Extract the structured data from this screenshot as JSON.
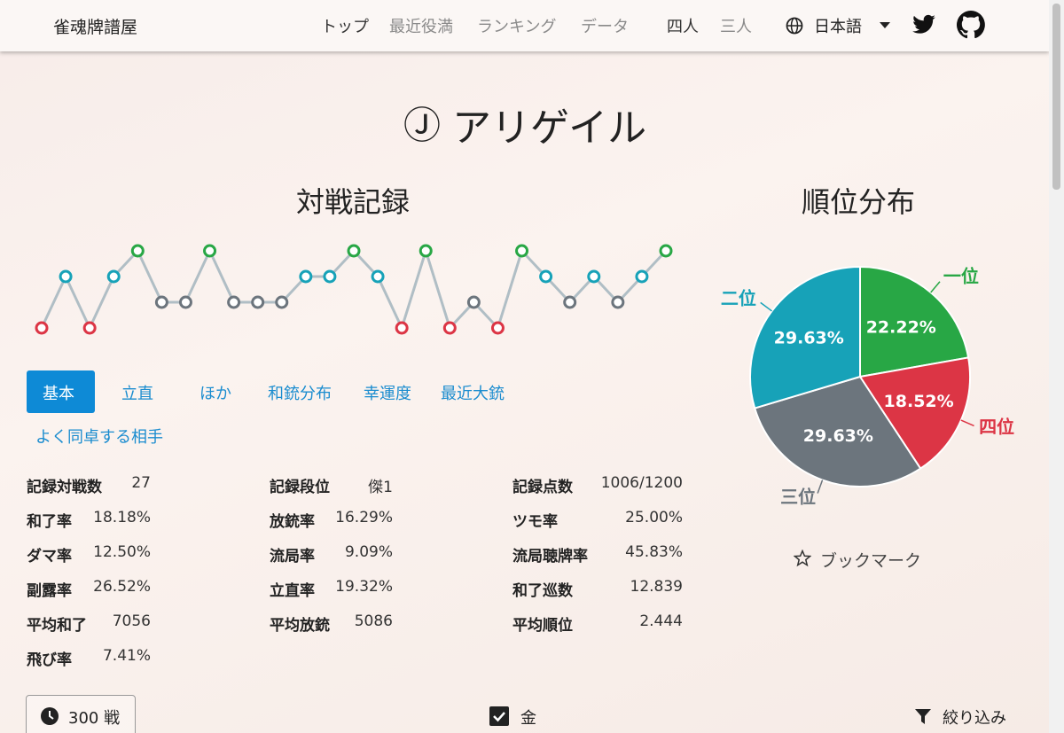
{
  "navbar": {
    "brand": "雀魂牌譜屋",
    "links": [
      "トップ",
      "最近役満",
      "ランキング",
      "データ"
    ],
    "modes": [
      "四人",
      "三人"
    ],
    "language": "日本語"
  },
  "player": {
    "badge": "Ⓙ",
    "name": "アリゲイル"
  },
  "rank_chart": {
    "chart_data": {
      "type": "line",
      "title": "対戦記録",
      "x": [
        1,
        2,
        3,
        4,
        5,
        6,
        7,
        8,
        9,
        10,
        11,
        12,
        13,
        14,
        15,
        16,
        17,
        18,
        19,
        20,
        21,
        22,
        23,
        24,
        25,
        26,
        27
      ],
      "values": [
        4,
        2,
        4,
        2,
        1,
        3,
        3,
        1,
        3,
        3,
        3,
        2,
        2,
        1,
        2,
        4,
        1,
        4,
        3,
        4,
        1,
        2,
        3,
        2,
        3,
        2,
        1
      ],
      "xlim": [
        1,
        27
      ],
      "ylim": [
        4,
        1
      ],
      "line_color": "#b0bec5",
      "rank_colors": [
        "#28a745",
        "#17a2b8",
        "#6c757d",
        "#dc3545"
      ]
    }
  },
  "rank_pie": {
    "chart_data": {
      "type": "pie",
      "title": "順位分布",
      "categories": [
        "一位",
        "四位",
        "三位",
        "二位"
      ],
      "values": [
        22.22,
        18.52,
        29.63,
        29.63
      ],
      "value_labels": [
        "22.22%",
        "18.52%",
        "29.63%",
        "29.63%"
      ],
      "colors": [
        "#28a745",
        "#dc3545",
        "#6c757d",
        "#17a2b8"
      ]
    }
  },
  "tabs": [
    "基本",
    "立直",
    "ほか",
    "和銃分布",
    "幸運度",
    "最近大銃",
    "よく同卓する相手"
  ],
  "stats": {
    "columns": [
      [
        {
          "label": "記録対戦数",
          "value": "27"
        },
        {
          "label": "和了率",
          "value": "18.18%"
        },
        {
          "label": "ダマ率",
          "value": "12.50%"
        },
        {
          "label": "副露率",
          "value": "26.52%"
        },
        {
          "label": "平均和了",
          "value": "7056"
        },
        {
          "label": "飛び率",
          "value": "7.41%"
        }
      ],
      [
        {
          "label": "記録段位",
          "value": "傑1"
        },
        {
          "label": "放銃率",
          "value": "16.29%"
        },
        {
          "label": "流局率",
          "value": "9.09%"
        },
        {
          "label": "立直率",
          "value": "19.32%"
        },
        {
          "label": "平均放銃",
          "value": "5086"
        }
      ],
      [
        {
          "label": "記録点数",
          "value": "1006/1200"
        },
        {
          "label": "ツモ率",
          "value": "25.00%"
        },
        {
          "label": "流局聴牌率",
          "value": "45.83%"
        },
        {
          "label": "和了巡数",
          "value": "12.839"
        },
        {
          "label": "平均順位",
          "value": "2.444"
        }
      ]
    ]
  },
  "bookmark": "ブックマーク",
  "footer": {
    "games": "300 戦",
    "checkbox": "金",
    "filter": "絞り込み"
  }
}
